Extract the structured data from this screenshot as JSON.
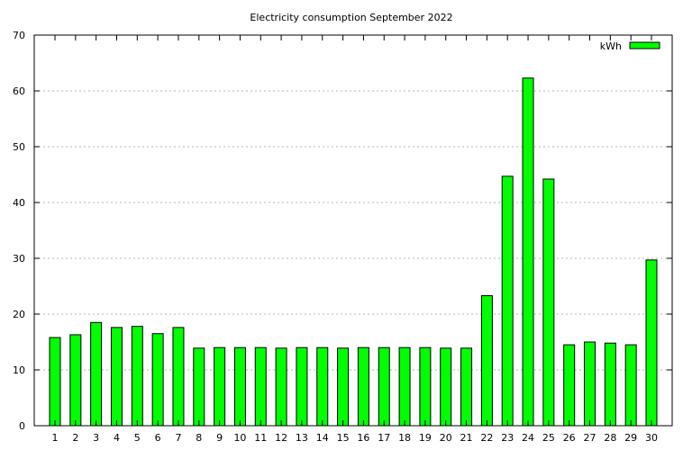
{
  "chart_data": {
    "type": "bar",
    "title": "Electricity consumption September 2022",
    "xlabel": "",
    "ylabel": "",
    "ylim": [
      0,
      70
    ],
    "yticks": [
      0,
      10,
      20,
      30,
      40,
      50,
      60,
      70
    ],
    "grid": true,
    "legend_position": "top-right",
    "categories": [
      "1",
      "2",
      "3",
      "4",
      "5",
      "6",
      "7",
      "8",
      "9",
      "10",
      "11",
      "12",
      "13",
      "14",
      "15",
      "16",
      "17",
      "18",
      "19",
      "20",
      "21",
      "22",
      "23",
      "24",
      "25",
      "26",
      "27",
      "28",
      "29",
      "30"
    ],
    "series": [
      {
        "name": "kWh",
        "color": "#00ff00",
        "values": [
          15.8,
          16.3,
          18.5,
          17.6,
          17.8,
          16.5,
          17.6,
          13.9,
          14.0,
          14.0,
          14.0,
          13.9,
          14.0,
          14.0,
          13.9,
          14.0,
          14.0,
          14.0,
          14.0,
          13.9,
          13.9,
          23.3,
          44.7,
          62.3,
          44.2,
          14.5,
          15.0,
          14.8,
          14.5,
          29.7
        ]
      }
    ]
  }
}
